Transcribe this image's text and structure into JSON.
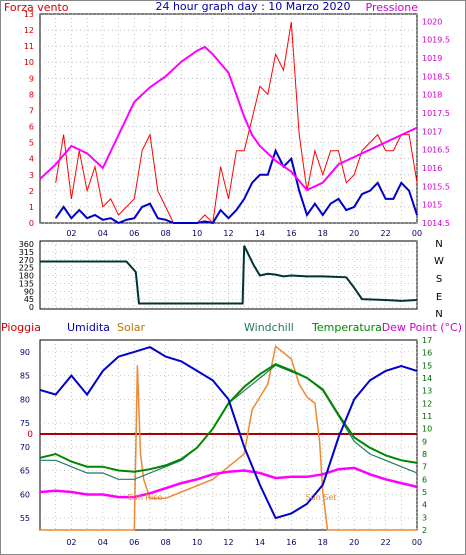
{
  "header": {
    "left": "Forza vento",
    "center": "24 hour graph day : 10 Marzo 2020",
    "right": "Pressione"
  },
  "compass_labels": [
    "N",
    "W",
    "S",
    "E",
    "N"
  ],
  "bottom_header": {
    "pioggia": "Pioggia",
    "umidita": "Umidita",
    "solar": "Solar",
    "windchill": "Windchill",
    "temperatura": "Temperatura",
    "dewpoint": "Dew Point (°C)"
  },
  "colors": {
    "wind_gust": "#ff0000",
    "wind_avg": "#0000cc",
    "pressure": "#ff00ff",
    "direction": "#003333",
    "humidity": "#0000cc",
    "solar": "#ee8833",
    "windchill": "#227766",
    "temperature": "#008800",
    "dewpoint": "#ff00ff",
    "rain": "#aa0000",
    "left_axis_label": "#cc0000",
    "title": "#0000aa",
    "right_axis_label": "#cc00cc"
  },
  "chart_data": [
    {
      "type": "line",
      "name": "wind-pressure",
      "x_ticks": [
        "02",
        "04",
        "06",
        "08",
        "10",
        "12",
        "14",
        "16",
        "18",
        "20",
        "22",
        "00"
      ],
      "y_left_ticks": [
        0,
        1,
        2,
        3,
        4,
        5,
        6,
        7,
        8,
        9,
        10,
        11,
        12,
        13
      ],
      "y_left_range": [
        0,
        13
      ],
      "y_right_ticks": [
        "1014.5",
        "1015",
        "1015.5",
        "1016",
        "1016.5",
        "1017",
        "1017.5",
        "1018",
        "1018.5",
        "1019",
        "1019.5",
        "1020"
      ],
      "y_right_range": [
        1014.5,
        1020.2
      ],
      "grid": true,
      "series": [
        {
          "key": "gust",
          "x": [
            1,
            1.5,
            2,
            2.5,
            3,
            3.5,
            4,
            4.5,
            5,
            5.5,
            6,
            6.5,
            7,
            7.5,
            8,
            8.5,
            9,
            9.5,
            10,
            10.5,
            11,
            11.5,
            12,
            12.5,
            13,
            13.5,
            14,
            14.5,
            15,
            15.5,
            16,
            16.5,
            17,
            17.5,
            18,
            18.5,
            19,
            19.5,
            20,
            20.5,
            21,
            21.5,
            22,
            22.5,
            23,
            23.5,
            24
          ],
          "y": [
            2.5,
            5.5,
            1.5,
            4.5,
            2,
            3.5,
            1,
            1.5,
            0.5,
            1,
            1.5,
            4.5,
            5.5,
            2,
            1,
            0,
            0,
            0,
            0,
            0.5,
            0,
            3.5,
            1.5,
            4.5,
            4.5,
            6.5,
            8.5,
            8,
            10.5,
            9.5,
            12.5,
            5.5,
            2,
            4.5,
            3,
            4.5,
            4.5,
            2.5,
            3,
            4.5,
            5,
            5.5,
            4.5,
            4.5,
            5.5,
            5.5,
            2.5
          ]
        },
        {
          "key": "average",
          "x": [
            1,
            1.5,
            2,
            2.5,
            3,
            3.5,
            4,
            4.5,
            5,
            5.5,
            6,
            6.5,
            7,
            7.5,
            8,
            8.5,
            9,
            9.5,
            10,
            10.5,
            11,
            11.5,
            12,
            12.5,
            13,
            13.5,
            14,
            14.5,
            15,
            15.5,
            16,
            16.5,
            17,
            17.5,
            18,
            18.5,
            19,
            19.5,
            20,
            20.5,
            21,
            21.5,
            22,
            22.5,
            23,
            23.5,
            24
          ],
          "y": [
            0.3,
            1,
            0.3,
            0.8,
            0.3,
            0.5,
            0.2,
            0.3,
            0,
            0.2,
            0.3,
            1,
            1.2,
            0.3,
            0.2,
            0,
            0,
            0,
            0,
            0.1,
            0,
            0.8,
            0.3,
            0.8,
            1.5,
            2.5,
            3,
            3,
            4.5,
            3.5,
            4,
            2,
            0.5,
            1.2,
            0.5,
            1.2,
            1.5,
            0.8,
            1,
            1.8,
            2,
            2.5,
            1.5,
            1.5,
            2.5,
            2,
            0.5
          ]
        },
        {
          "key": "pressure",
          "x": [
            0,
            1,
            2,
            3,
            4,
            5,
            6,
            7,
            8,
            9,
            10,
            10.5,
            11,
            12,
            12.5,
            13,
            13.5,
            14,
            15,
            16,
            17,
            18,
            19,
            20,
            21,
            22,
            23,
            24
          ],
          "y": [
            1015.7,
            1016.1,
            1016.6,
            1016.4,
            1016.0,
            1016.9,
            1017.8,
            1018.2,
            1018.5,
            1018.9,
            1019.2,
            1019.3,
            1019.1,
            1018.6,
            1018.0,
            1017.4,
            1016.9,
            1016.6,
            1016.2,
            1015.9,
            1015.4,
            1015.6,
            1016.1,
            1016.3,
            1016.5,
            1016.7,
            1016.9,
            1017.1
          ]
        }
      ]
    },
    {
      "type": "line",
      "name": "wind-direction",
      "x_ticks": [
        "02",
        "04",
        "06",
        "08",
        "10",
        "12",
        "14",
        "16",
        "18",
        "20",
        "22",
        "00"
      ],
      "y_ticks": [
        0,
        45,
        90,
        135,
        180,
        225,
        270,
        315,
        360
      ],
      "y_range": [
        0,
        360
      ],
      "grid": true,
      "series": [
        {
          "key": "direction",
          "x": [
            0,
            5.5,
            6.1,
            6.3,
            12.8,
            12.9,
            13.0,
            13.6,
            14.0,
            14.5,
            15.0,
            15.5,
            16.0,
            17.0,
            18.0,
            19.5,
            20.0,
            20.5,
            22.0,
            23.0,
            24.0
          ],
          "y": [
            260,
            260,
            200,
            20,
            20,
            20,
            350,
            240,
            180,
            190,
            185,
            175,
            180,
            175,
            175,
            170,
            110,
            45,
            40,
            35,
            40
          ]
        }
      ]
    },
    {
      "type": "line",
      "name": "temperature-humidity",
      "x_ticks": [
        "02",
        "04",
        "06",
        "08",
        "10",
        "12",
        "14",
        "16",
        "18",
        "20",
        "22",
        "00"
      ],
      "y_left_ticks": [
        55,
        60,
        65,
        70,
        75,
        80,
        85,
        90
      ],
      "y_left_range": [
        52.5,
        92.5
      ],
      "y_right_ticks": [
        2,
        3,
        4,
        5,
        6,
        7,
        8,
        9,
        10,
        11,
        12,
        13,
        14,
        15,
        16,
        17
      ],
      "y_right_range": [
        2,
        17
      ],
      "rain_marker_label": "0",
      "annotations": [
        "Sun Rise",
        "Sun Set"
      ],
      "grid": true,
      "series": [
        {
          "key": "humidity",
          "x": [
            0,
            1,
            2,
            3,
            4,
            5,
            6,
            7,
            8,
            9,
            10,
            11,
            12,
            13,
            14,
            15,
            16,
            17,
            18,
            19,
            20,
            21,
            22,
            23,
            24
          ],
          "y": [
            82,
            81,
            85,
            81,
            86,
            89,
            90,
            91,
            89,
            88,
            86,
            84,
            80,
            70,
            62,
            55,
            56,
            58,
            62,
            72,
            80,
            84,
            86,
            87,
            86
          ]
        },
        {
          "key": "solar",
          "x": [
            0,
            6.0,
            6.2,
            6.4,
            6.6,
            7,
            8,
            9,
            10,
            11,
            12,
            13,
            13.5,
            14,
            14.5,
            15,
            15.5,
            16,
            16.5,
            17,
            17.5,
            17.8,
            18.0,
            18.3,
            24
          ],
          "y": [
            2,
            2,
            15,
            8,
            6,
            4.5,
            4.5,
            5,
            5.5,
            6,
            7,
            8,
            11.5,
            12.5,
            13.5,
            16.5,
            16,
            15.5,
            13.5,
            12.5,
            12,
            9,
            5,
            2,
            2
          ]
        },
        {
          "key": "windchill",
          "x": [
            0,
            1,
            2,
            3,
            4,
            5,
            6,
            7,
            8,
            9,
            10,
            11,
            12,
            13,
            14,
            15,
            16,
            17,
            18,
            19,
            20,
            21,
            22,
            23,
            24
          ],
          "y": [
            7.5,
            7.5,
            7,
            6.5,
            6.5,
            6,
            6,
            6.5,
            7,
            7.5,
            8.5,
            10,
            12,
            13,
            14,
            15,
            14.5,
            14,
            13,
            11,
            9,
            8,
            7.5,
            7,
            6.5
          ]
        },
        {
          "key": "temperature",
          "x": [
            0,
            1,
            2,
            3,
            4,
            5,
            6,
            7,
            8,
            9,
            10,
            11,
            12,
            13,
            14,
            15,
            16,
            17,
            18,
            19,
            20,
            21,
            22,
            23,
            24
          ],
          "y": [
            7.7,
            8,
            7.4,
            7,
            7,
            6.7,
            6.6,
            6.8,
            7.1,
            7.6,
            8.5,
            10,
            12,
            13.3,
            14.3,
            15.1,
            14.6,
            14,
            13.1,
            11.1,
            9.3,
            8.5,
            7.9,
            7.5,
            7.3
          ]
        },
        {
          "key": "dewpoint",
          "x": [
            0,
            1,
            2,
            3,
            4,
            5,
            6,
            7,
            8,
            9,
            10,
            11,
            12,
            13,
            14,
            15,
            16,
            17,
            18,
            19,
            20,
            21,
            22,
            23,
            24
          ],
          "y": [
            5,
            5.1,
            5,
            4.8,
            4.8,
            4.6,
            4.6,
            4.9,
            5.3,
            5.7,
            6,
            6.4,
            6.6,
            6.7,
            6.5,
            6.1,
            6.2,
            6.2,
            6.4,
            6.8,
            6.9,
            6.4,
            6.0,
            5.7,
            5.4
          ]
        }
      ]
    }
  ]
}
